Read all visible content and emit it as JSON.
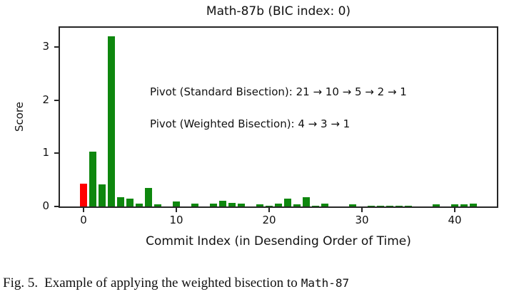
{
  "caption": {
    "prefix": "Fig. 5.",
    "text": "Example of applying the weighted bisection to",
    "code": "Math-87"
  },
  "chart_data": {
    "type": "bar",
    "title": "Math-87b (BIC index: 0)",
    "xlabel": "Commit Index (in Desending Order of Time)",
    "ylabel": "Score",
    "xlim": [
      -2.5,
      44.5
    ],
    "ylim": [
      0,
      3.36
    ],
    "xticks": [
      0,
      10,
      20,
      30,
      40
    ],
    "yticks": [
      0,
      1,
      2,
      3
    ],
    "grid": false,
    "legend": "none",
    "bar_color": "#0e870e",
    "highlight_color": "#ff0000",
    "highlight_index": 0,
    "x": [
      0,
      1,
      2,
      3,
      4,
      5,
      6,
      7,
      8,
      9,
      10,
      11,
      12,
      13,
      14,
      15,
      16,
      17,
      18,
      19,
      20,
      21,
      22,
      23,
      24,
      25,
      26,
      27,
      28,
      29,
      30,
      31,
      32,
      33,
      34,
      35,
      36,
      37,
      38,
      39,
      40,
      41,
      42
    ],
    "values": [
      0.43,
      1.03,
      0.42,
      3.2,
      0.17,
      0.15,
      0.05,
      0.35,
      0.04,
      0,
      0.09,
      0,
      0.05,
      0,
      0.05,
      0.11,
      0.07,
      0.06,
      0,
      0.045,
      0.02,
      0.05,
      0.15,
      0.045,
      0.18,
      0.015,
      0.05,
      0,
      0,
      0.04,
      0,
      0.01,
      0.015,
      0.01,
      0.01,
      0.01,
      0,
      0,
      0.035,
      0,
      0.045,
      0.035,
      0.05
    ],
    "annotations": [
      {
        "text": "Pivot (Standard Bisection): 21 → 10 → 5 → 2 → 1"
      },
      {
        "text": "Pivot (Weighted Bisection): 4 → 3 → 1"
      }
    ]
  }
}
